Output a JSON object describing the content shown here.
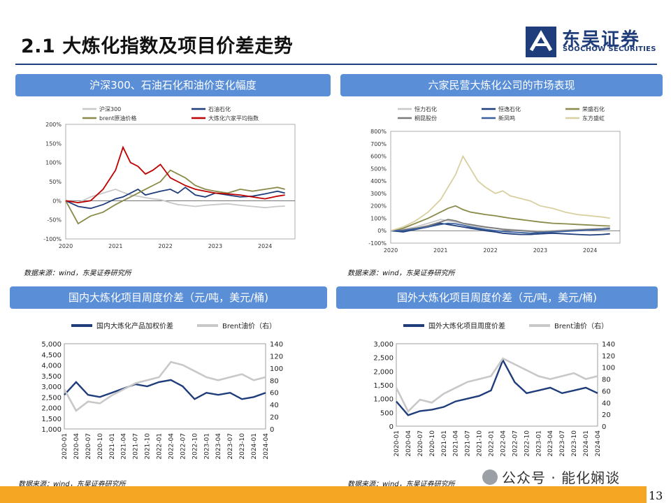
{
  "page": {
    "title": "2.1 大炼化指数及项目价差走势",
    "page_number": "13",
    "watermark": "公众号 · 能化娴谈",
    "logo": {
      "cn": "东吴证券",
      "en": "SOOCHOW SECURITIES"
    },
    "colors": {
      "header_bg": "#5a8fd8",
      "rule": "#1f3d7a",
      "footer": "#f5a623"
    }
  },
  "panels": [
    {
      "heading": "沪深300、石油石化和油价变化幅度",
      "source": "数据来源：wind，东吴证券研究所"
    },
    {
      "heading": "六家民营大炼化公司的市场表现",
      "source": "数据来源：wind，东吴证券研究所"
    },
    {
      "heading": "国内大炼化项目周度价差（元/吨，美元/桶)",
      "source": "数据来源：wind，东吴证券研究所"
    },
    {
      "heading": "国外大炼化项目周度价差（元/吨，美元/桶)",
      "source": "数据来源：wind，东吴证券研究所"
    }
  ],
  "chart_data": [
    {
      "type": "line",
      "x": [
        2020.0,
        2020.25,
        2020.5,
        2020.75,
        2021.0,
        2021.15,
        2021.3,
        2021.45,
        2021.6,
        2021.75,
        2021.9,
        2022.1,
        2022.25,
        2022.4,
        2022.6,
        2022.8,
        2023.0,
        2023.25,
        2023.5,
        2023.75,
        2024.0,
        2024.25,
        2024.4
      ],
      "xticks": [
        "2020",
        "2021",
        "2022",
        "2023",
        "2024"
      ],
      "ylim": [
        -100,
        200
      ],
      "yticks": [
        "200%",
        "150%",
        "100%",
        "50%",
        "0%",
        "-50%",
        "-100%"
      ],
      "ytick_values": [
        200,
        150,
        100,
        50,
        0,
        -50,
        -100
      ],
      "series": [
        {
          "name": "沪深300",
          "color": "#c8c8c8",
          "values": [
            0,
            -5,
            10,
            20,
            30,
            22,
            15,
            12,
            8,
            5,
            3,
            -5,
            -10,
            -12,
            -15,
            -12,
            -10,
            -8,
            -12,
            -15,
            -18,
            -15,
            -14
          ]
        },
        {
          "name": "石油石化",
          "color": "#1f3d7a",
          "values": [
            0,
            -15,
            -20,
            -10,
            5,
            10,
            20,
            30,
            15,
            20,
            25,
            30,
            20,
            35,
            15,
            10,
            20,
            15,
            10,
            12,
            18,
            25,
            20
          ]
        },
        {
          "name": "brent原油价格",
          "color": "#8a8a4a",
          "values": [
            0,
            -60,
            -40,
            -30,
            -10,
            0,
            10,
            20,
            30,
            40,
            50,
            80,
            70,
            60,
            40,
            30,
            25,
            20,
            30,
            25,
            30,
            35,
            30
          ]
        },
        {
          "name": "大炼化六家平均指数",
          "color": "#c00000",
          "values": [
            0,
            -5,
            0,
            30,
            80,
            140,
            100,
            90,
            70,
            80,
            95,
            60,
            50,
            40,
            30,
            25,
            20,
            18,
            15,
            10,
            5,
            12,
            15
          ]
        }
      ]
    },
    {
      "type": "line",
      "x": [
        2020.0,
        2020.25,
        2020.5,
        2020.75,
        2021.0,
        2021.15,
        2021.3,
        2021.45,
        2021.6,
        2021.75,
        2021.9,
        2022.1,
        2022.25,
        2022.4,
        2022.6,
        2022.8,
        2023.0,
        2023.25,
        2023.5,
        2023.75,
        2024.0,
        2024.25,
        2024.4
      ],
      "xticks": [
        "2020",
        "2021",
        "2022",
        "2023",
        "2024"
      ],
      "ylim": [
        -100,
        800
      ],
      "yticks": [
        "800%",
        "700%",
        "600%",
        "500%",
        "400%",
        "300%",
        "200%",
        "100%",
        "0%",
        "-100%"
      ],
      "ytick_values": [
        800,
        700,
        600,
        500,
        400,
        300,
        200,
        100,
        0,
        -100
      ],
      "series": [
        {
          "name": "恒力石化",
          "color": "#c8c8c8",
          "values": [
            0,
            10,
            30,
            60,
            90,
            80,
            70,
            60,
            40,
            30,
            25,
            20,
            15,
            10,
            5,
            0,
            -5,
            0,
            5,
            10,
            15,
            20,
            25
          ]
        },
        {
          "name": "恒逸石化",
          "color": "#1f3d7a",
          "values": [
            0,
            -10,
            10,
            30,
            60,
            50,
            40,
            30,
            20,
            10,
            0,
            -10,
            -20,
            -25,
            -30,
            -30,
            -25,
            -20,
            -25,
            -30,
            -35,
            -30,
            -25
          ]
        },
        {
          "name": "荣盛石化",
          "color": "#8a8a4a",
          "values": [
            0,
            20,
            60,
            100,
            150,
            180,
            200,
            170,
            150,
            140,
            130,
            120,
            110,
            100,
            90,
            80,
            70,
            60,
            55,
            50,
            45,
            40,
            38
          ]
        },
        {
          "name": "桐昆股份",
          "color": "#7a7a7a",
          "values": [
            0,
            5,
            20,
            40,
            70,
            90,
            80,
            60,
            50,
            40,
            30,
            20,
            10,
            5,
            0,
            -5,
            -10,
            -5,
            0,
            5,
            10,
            15,
            20
          ]
        },
        {
          "name": "新凤鸣",
          "color": "#3a5f9f",
          "values": [
            0,
            0,
            15,
            30,
            50,
            60,
            55,
            45,
            30,
            20,
            10,
            0,
            -5,
            -10,
            -15,
            -20,
            -15,
            -10,
            -5,
            0,
            5,
            10,
            15
          ]
        },
        {
          "name": "东方盛虹",
          "color": "#d8d0a0",
          "values": [
            0,
            30,
            80,
            150,
            250,
            350,
            450,
            600,
            500,
            400,
            350,
            300,
            320,
            280,
            260,
            240,
            200,
            180,
            150,
            130,
            120,
            110,
            100
          ]
        }
      ]
    },
    {
      "type": "line",
      "xticks": [
        "2020-01",
        "2020-04",
        "2020-07",
        "2020-10",
        "2021-01",
        "2021-04",
        "2021-07",
        "2021-10",
        "2022-01",
        "2022-04",
        "2022-07",
        "2022-10",
        "2023-01",
        "2023-04",
        "2023-07",
        "2023-10",
        "2024-01",
        "2024-04"
      ],
      "ylim": [
        1000,
        5000
      ],
      "yticks": [
        "5,000",
        "4,500",
        "4,000",
        "3,500",
        "3,000",
        "2,500",
        "2,000",
        "1,500",
        "1,000"
      ],
      "ytick_values": [
        5000,
        4500,
        4000,
        3500,
        3000,
        2500,
        2000,
        1500,
        1000
      ],
      "y2lim": [
        0,
        140
      ],
      "y2ticks": [
        "140",
        "120",
        "100",
        "80",
        "60",
        "40",
        "20",
        "0"
      ],
      "y2tick_values": [
        140,
        120,
        100,
        80,
        60,
        40,
        20,
        0
      ],
      "legend": [
        "国内大炼化产品加权价差",
        "Brent油价（右）"
      ],
      "series": [
        {
          "name": "国内大炼化产品加权价差",
          "color": "#1f3d7a",
          "axis": "left",
          "values": [
            2600,
            3200,
            2600,
            2500,
            2700,
            2900,
            3100,
            3000,
            3200,
            3300,
            3000,
            2400,
            2700,
            2600,
            2700,
            2400,
            2500,
            2700
          ]
        },
        {
          "name": "Brent油价（右）",
          "color": "#c8c8c8",
          "axis": "right",
          "values": [
            65,
            30,
            45,
            42,
            55,
            65,
            75,
            80,
            85,
            110,
            105,
            95,
            85,
            80,
            85,
            90,
            80,
            85
          ]
        }
      ]
    },
    {
      "type": "line",
      "xticks": [
        "2020-01",
        "2020-04",
        "2020-07",
        "2020-10",
        "2021-01",
        "2021-04",
        "2021-07",
        "2021-10",
        "2022-01",
        "2022-04",
        "2022-07",
        "2022-10",
        "2023-01",
        "2023-04",
        "2023-07",
        "2023-10",
        "2024-01",
        "2024-04"
      ],
      "ylim": [
        0,
        3000
      ],
      "yticks": [
        "3,000",
        "2,500",
        "2,000",
        "1,500",
        "1,000",
        "500",
        "0"
      ],
      "ytick_values": [
        3000,
        2500,
        2000,
        1500,
        1000,
        500,
        0
      ],
      "y2lim": [
        0,
        140
      ],
      "y2ticks": [
        "140",
        "120",
        "100",
        "80",
        "60",
        "40",
        "20",
        "0"
      ],
      "y2tick_values": [
        140,
        120,
        100,
        80,
        60,
        40,
        20,
        0
      ],
      "legend": [
        "国外大炼化项目周度价差",
        "Brent油价（右）"
      ],
      "series": [
        {
          "name": "国外大炼化项目周度价差",
          "color": "#1f3d7a",
          "axis": "left",
          "values": [
            900,
            400,
            550,
            600,
            700,
            900,
            1000,
            1100,
            1300,
            2400,
            1600,
            1200,
            1300,
            1400,
            1200,
            1300,
            1400,
            1200
          ]
        },
        {
          "name": "Brent油价（右）",
          "color": "#c8c8c8",
          "axis": "right",
          "values": [
            65,
            25,
            45,
            40,
            55,
            65,
            75,
            80,
            85,
            115,
            105,
            95,
            85,
            80,
            85,
            90,
            80,
            85
          ]
        }
      ]
    }
  ]
}
